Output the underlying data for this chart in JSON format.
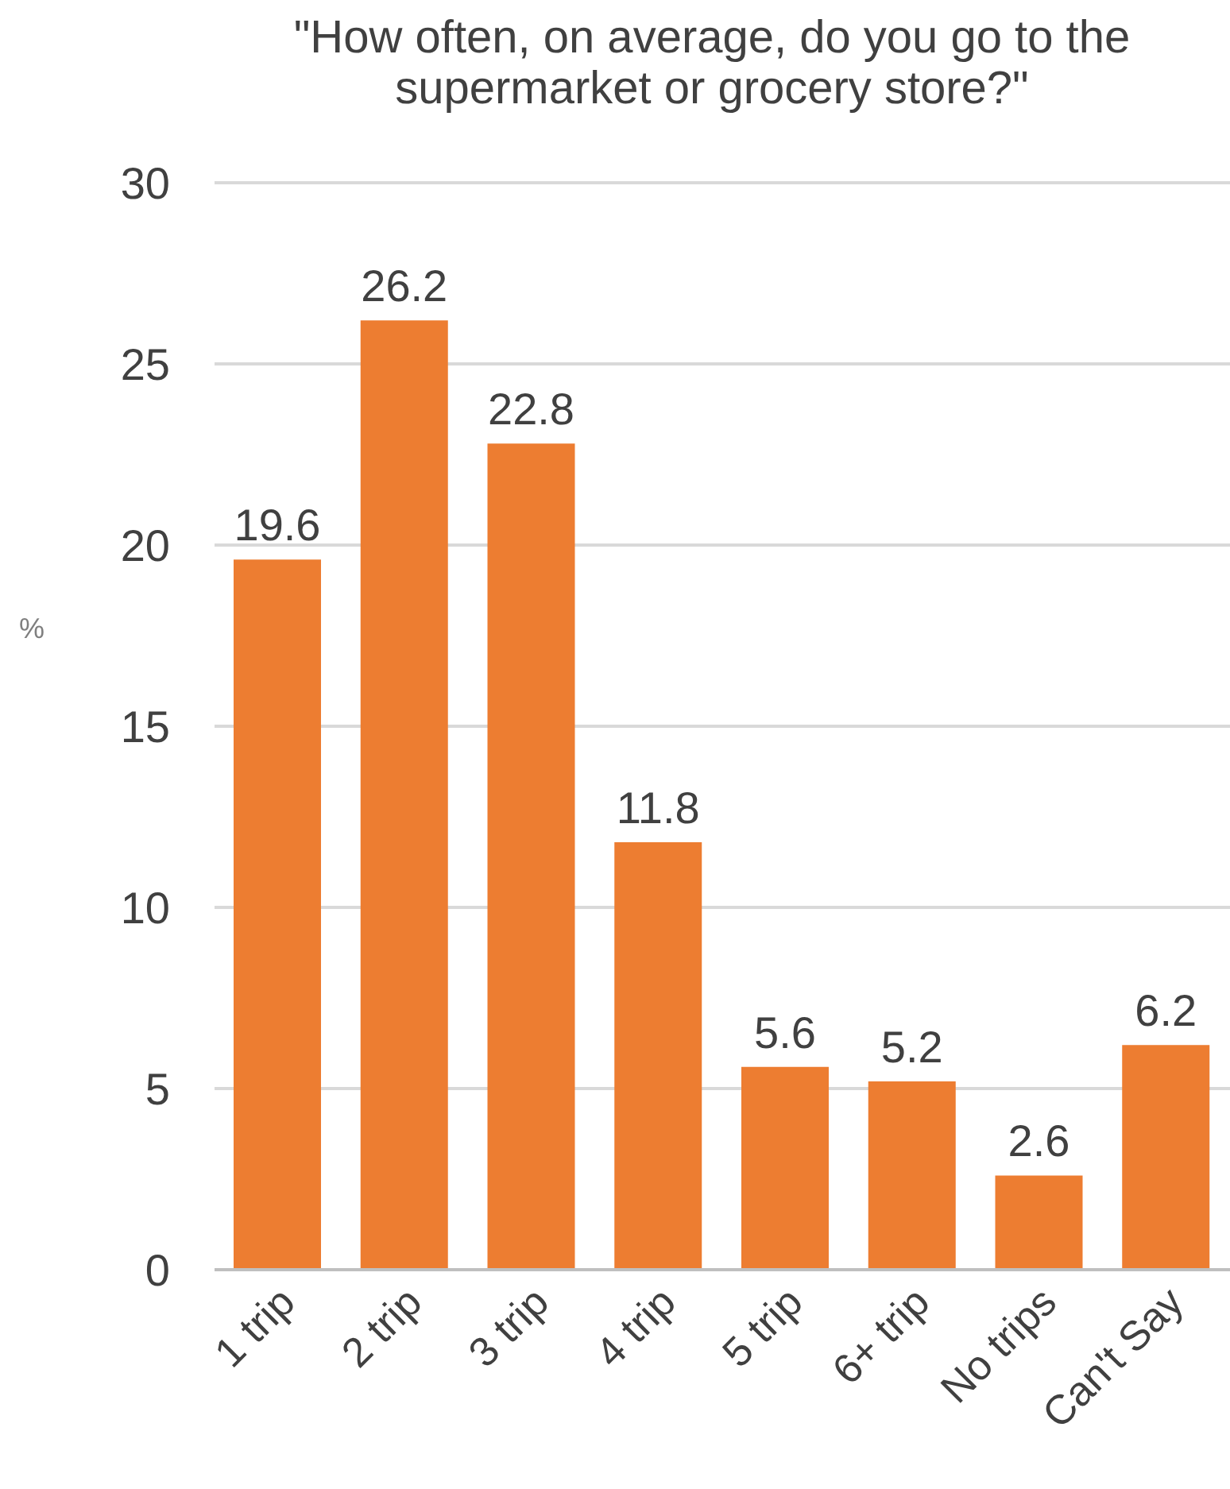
{
  "chart_data": {
    "type": "bar",
    "title": "\"How often, on average, do you go to the supermarket or grocery store?\"",
    "ylabel": "%",
    "categories": [
      "1 trip",
      "2 trip",
      "3 trip",
      "4 trip",
      "5 trip",
      "6+ trip",
      "No trips",
      "Can't Say"
    ],
    "values": [
      19.6,
      26.2,
      22.8,
      11.8,
      5.6,
      5.2,
      2.6,
      6.2
    ],
    "color": "#ed7d31",
    "ylim": [
      0,
      30
    ],
    "yticks": [
      0,
      5,
      10,
      15,
      20,
      25,
      30
    ],
    "grid": "y",
    "data_labels": true
  }
}
